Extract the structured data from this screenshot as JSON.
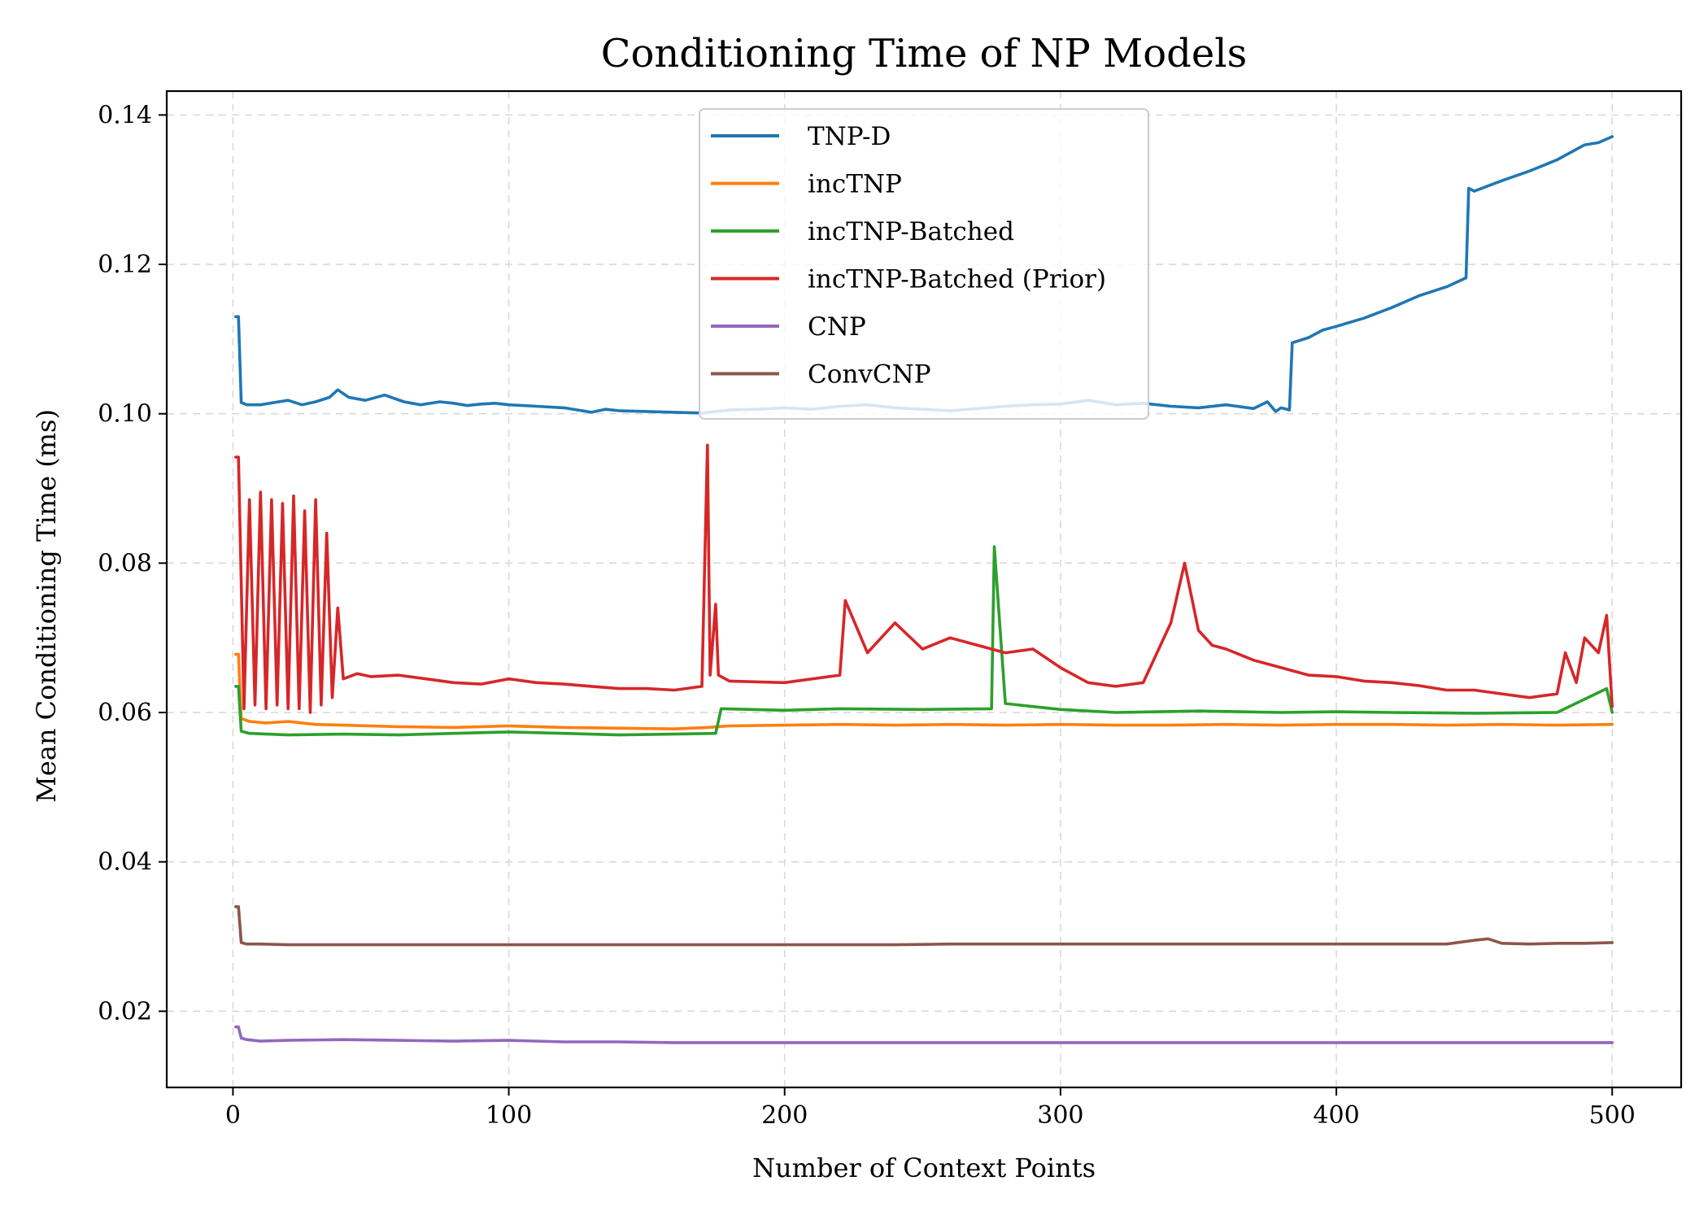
{
  "chart_data": {
    "type": "line",
    "title": "Conditioning Time of NP Models",
    "xlabel": "Number of Context Points",
    "ylabel": "Mean Conditioning Time (ms)",
    "xlim": [
      -24,
      525
    ],
    "ylim": [
      0.0098,
      0.1432
    ],
    "xticks": [
      0,
      100,
      200,
      300,
      400,
      500
    ],
    "yticks": [
      0.02,
      0.04,
      0.06,
      0.08,
      0.1,
      0.12,
      0.14
    ],
    "xtick_labels": [
      "0",
      "100",
      "200",
      "300",
      "400",
      "500"
    ],
    "ytick_labels": [
      "0.02",
      "0.04",
      "0.06",
      "0.08",
      "0.10",
      "0.12",
      "0.14"
    ],
    "grid": true,
    "legend_position": "upper-center",
    "series": [
      {
        "name": "TNP-D",
        "color": "#1f77b4",
        "x": [
          1,
          2,
          3,
          5,
          10,
          15,
          20,
          25,
          30,
          35,
          38,
          42,
          48,
          55,
          62,
          68,
          75,
          80,
          85,
          90,
          95,
          100,
          110,
          120,
          130,
          135,
          140,
          150,
          160,
          170,
          180,
          190,
          200,
          210,
          220,
          230,
          240,
          250,
          260,
          270,
          280,
          290,
          300,
          310,
          320,
          330,
          340,
          350,
          360,
          370,
          375,
          378,
          380,
          383,
          384,
          390,
          395,
          400,
          410,
          420,
          430,
          440,
          447,
          448,
          450,
          455,
          460,
          470,
          480,
          490,
          495,
          500
        ],
        "values": [
          0.113,
          0.113,
          0.1015,
          0.1012,
          0.1012,
          0.1015,
          0.1018,
          0.1012,
          0.1016,
          0.1022,
          0.1032,
          0.1022,
          0.1018,
          0.1025,
          0.1016,
          0.1012,
          0.1016,
          0.1014,
          0.1011,
          0.1013,
          0.1014,
          0.1012,
          0.101,
          0.1008,
          0.1002,
          0.1006,
          0.1004,
          0.1003,
          0.1002,
          0.1001,
          0.1005,
          0.1006,
          0.1008,
          0.1006,
          0.101,
          0.1012,
          0.1008,
          0.1006,
          0.1004,
          0.1007,
          0.101,
          0.1012,
          0.1013,
          0.1018,
          0.1012,
          0.1014,
          0.101,
          0.1008,
          0.1012,
          0.1007,
          0.1016,
          0.1003,
          0.1008,
          0.1005,
          0.1095,
          0.1102,
          0.1112,
          0.1117,
          0.1128,
          0.1142,
          0.1158,
          0.117,
          0.1182,
          0.1302,
          0.1298,
          0.1305,
          0.1312,
          0.1325,
          0.134,
          0.136,
          0.1363,
          0.1371
        ]
      },
      {
        "name": "incTNP",
        "color": "#ff7f0e",
        "x": [
          1,
          2,
          3,
          6,
          12,
          20,
          30,
          40,
          60,
          80,
          100,
          120,
          140,
          160,
          172,
          180,
          200,
          220,
          240,
          260,
          280,
          300,
          320,
          340,
          360,
          380,
          400,
          420,
          440,
          460,
          480,
          500
        ],
        "values": [
          0.0678,
          0.0678,
          0.0592,
          0.0588,
          0.0586,
          0.0588,
          0.0584,
          0.0583,
          0.0581,
          0.058,
          0.0582,
          0.058,
          0.0579,
          0.0578,
          0.058,
          0.0582,
          0.0583,
          0.0584,
          0.0583,
          0.0584,
          0.0583,
          0.0584,
          0.0583,
          0.0583,
          0.0584,
          0.0583,
          0.0584,
          0.0584,
          0.0583,
          0.0584,
          0.0583,
          0.0584
        ]
      },
      {
        "name": "incTNP-Batched",
        "color": "#2ca02c",
        "x": [
          1,
          2,
          3,
          6,
          20,
          40,
          60,
          80,
          100,
          120,
          140,
          160,
          175,
          177,
          200,
          220,
          250,
          275,
          276,
          280,
          300,
          320,
          350,
          380,
          400,
          420,
          450,
          480,
          498,
          500
        ],
        "values": [
          0.0635,
          0.0635,
          0.0575,
          0.0572,
          0.057,
          0.0571,
          0.057,
          0.0572,
          0.0574,
          0.0572,
          0.057,
          0.0571,
          0.0572,
          0.0605,
          0.0603,
          0.0605,
          0.0604,
          0.0605,
          0.0822,
          0.0612,
          0.0604,
          0.06,
          0.0602,
          0.06,
          0.0601,
          0.06,
          0.0599,
          0.06,
          0.0632,
          0.06
        ]
      },
      {
        "name": "incTNP-Batched (Prior)",
        "color": "#d62728",
        "x": [
          1,
          2,
          4,
          6,
          8,
          10,
          12,
          14,
          16,
          18,
          20,
          22,
          24,
          26,
          28,
          30,
          32,
          34,
          36,
          38,
          40,
          45,
          50,
          60,
          70,
          80,
          90,
          100,
          110,
          120,
          130,
          140,
          150,
          160,
          170,
          172,
          173,
          175,
          176,
          180,
          200,
          220,
          222,
          230,
          240,
          250,
          260,
          270,
          280,
          290,
          300,
          310,
          320,
          330,
          340,
          345,
          350,
          355,
          360,
          370,
          380,
          390,
          400,
          410,
          420,
          430,
          440,
          450,
          460,
          470,
          480,
          483,
          487,
          490,
          495,
          498,
          500
        ],
        "values": [
          0.0942,
          0.0942,
          0.0605,
          0.0885,
          0.061,
          0.0895,
          0.0605,
          0.0885,
          0.061,
          0.088,
          0.0605,
          0.089,
          0.0605,
          0.087,
          0.06,
          0.0885,
          0.061,
          0.084,
          0.062,
          0.074,
          0.0645,
          0.0652,
          0.0648,
          0.065,
          0.0645,
          0.064,
          0.0638,
          0.0645,
          0.064,
          0.0638,
          0.0635,
          0.0632,
          0.0632,
          0.063,
          0.0635,
          0.0958,
          0.065,
          0.0745,
          0.065,
          0.0642,
          0.064,
          0.065,
          0.075,
          0.068,
          0.072,
          0.0685,
          0.07,
          0.069,
          0.068,
          0.0685,
          0.066,
          0.064,
          0.0635,
          0.064,
          0.072,
          0.08,
          0.071,
          0.069,
          0.0685,
          0.067,
          0.066,
          0.065,
          0.0648,
          0.0642,
          0.064,
          0.0636,
          0.063,
          0.063,
          0.0625,
          0.062,
          0.0625,
          0.068,
          0.064,
          0.07,
          0.068,
          0.073,
          0.0608
        ]
      },
      {
        "name": "CNP",
        "color": "#9467bd",
        "x": [
          1,
          2,
          3,
          5,
          10,
          20,
          40,
          60,
          80,
          100,
          120,
          140,
          160,
          180,
          200,
          220,
          240,
          260,
          280,
          300,
          320,
          340,
          360,
          380,
          400,
          420,
          440,
          460,
          480,
          500
        ],
        "values": [
          0.0179,
          0.0179,
          0.0164,
          0.0162,
          0.016,
          0.0161,
          0.0162,
          0.0161,
          0.016,
          0.0161,
          0.0159,
          0.0159,
          0.0158,
          0.0158,
          0.0158,
          0.0158,
          0.0158,
          0.0158,
          0.0158,
          0.0158,
          0.0158,
          0.0158,
          0.0158,
          0.0158,
          0.0158,
          0.0158,
          0.0158,
          0.0158,
          0.0158,
          0.0158
        ]
      },
      {
        "name": "ConvCNP",
        "color": "#8c564b",
        "x": [
          1,
          2,
          3,
          5,
          10,
          20,
          40,
          60,
          80,
          100,
          120,
          140,
          160,
          180,
          200,
          220,
          240,
          260,
          280,
          300,
          320,
          340,
          360,
          380,
          400,
          420,
          440,
          450,
          455,
          460,
          470,
          480,
          490,
          500
        ],
        "values": [
          0.034,
          0.034,
          0.0292,
          0.029,
          0.029,
          0.0289,
          0.0289,
          0.0289,
          0.0289,
          0.0289,
          0.0289,
          0.0289,
          0.0289,
          0.0289,
          0.0289,
          0.0289,
          0.0289,
          0.029,
          0.029,
          0.029,
          0.029,
          0.029,
          0.029,
          0.029,
          0.029,
          0.029,
          0.029,
          0.0295,
          0.0297,
          0.0291,
          0.029,
          0.0291,
          0.0291,
          0.0292
        ]
      }
    ]
  }
}
